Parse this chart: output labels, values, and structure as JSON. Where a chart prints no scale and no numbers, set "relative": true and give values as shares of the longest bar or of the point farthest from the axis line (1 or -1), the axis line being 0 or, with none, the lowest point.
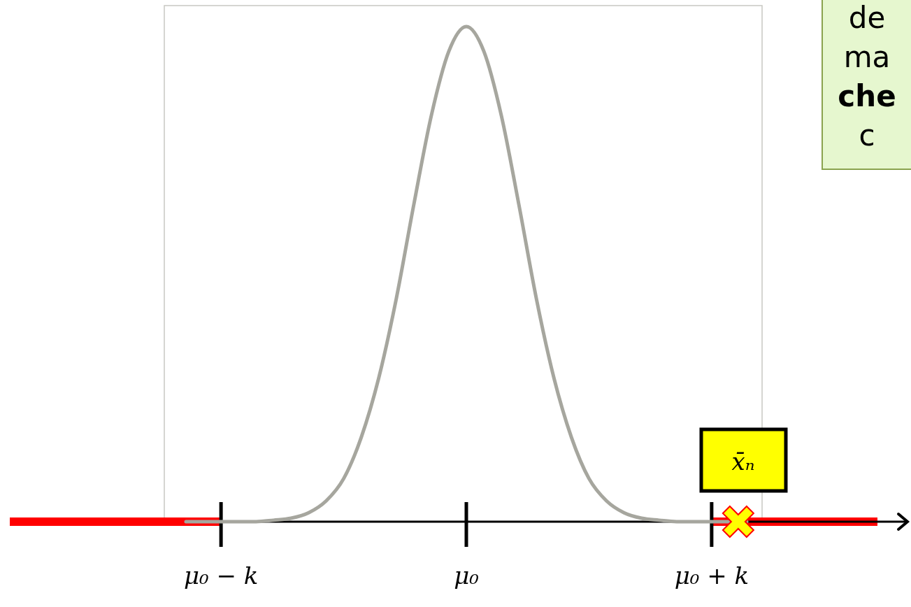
{
  "chart_data": {
    "type": "line",
    "relative": true,
    "categories": [
      null,
      null,
      "μ₀ − k",
      null,
      null,
      null,
      null,
      null,
      null,
      null,
      null,
      null,
      null,
      null,
      null,
      null,
      "μ₀",
      null,
      null,
      null,
      null,
      null,
      null,
      null,
      null,
      null,
      null,
      null,
      null,
      null,
      "μ₀ + k",
      null,
      null
    ],
    "series": [
      {
        "color": "#a6a69e",
        "values": [
          0,
          0,
          0,
          0,
          0,
          0.003,
          0.007,
          0.018,
          0.042,
          0.087,
          0.17,
          0.29,
          0.45,
          0.64,
          0.82,
          0.95,
          1,
          0.95,
          0.82,
          0.64,
          0.45,
          0.29,
          0.17,
          0.087,
          0.042,
          0.018,
          0.007,
          0.003,
          0,
          0,
          0,
          0,
          0
        ]
      }
    ],
    "annotations": [
      "x̄ₙ",
      "de",
      "ma",
      "che",
      "c"
    ]
  }
}
